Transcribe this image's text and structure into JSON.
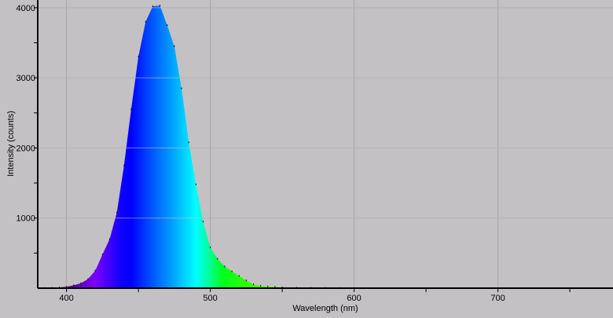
{
  "chart_data": {
    "type": "area",
    "title": "",
    "xlabel": "Wavelength (nm)",
    "ylabel": "Intensity (counts)",
    "xlim": [
      380,
      780
    ],
    "ylim": [
      0,
      4110
    ],
    "grid": true,
    "x_ticks": [
      "400",
      "500",
      "600",
      "700"
    ],
    "x_tick_values": [
      400,
      500,
      600,
      700
    ],
    "x_minor_ticks": [
      450,
      550,
      650,
      750
    ],
    "y_ticks": [
      "1000",
      "2000",
      "3000",
      "4000"
    ],
    "y_tick_values": [
      1000,
      2000,
      3000,
      4000
    ],
    "y_minor_ticks": [
      500,
      1500,
      2500,
      3500
    ],
    "fill": "spectral color gradient by wavelength",
    "x": [
      385,
      390,
      395,
      400,
      405,
      410,
      415,
      420,
      425,
      430,
      435,
      440,
      445,
      450,
      455,
      460,
      465,
      470,
      475,
      480,
      485,
      490,
      495,
      500,
      505,
      510,
      515,
      520,
      525,
      530,
      535,
      540,
      545,
      550,
      560,
      570,
      580,
      590,
      600
    ],
    "y": [
      2,
      5,
      10,
      20,
      40,
      70,
      130,
      250,
      480,
      700,
      1080,
      1750,
      2550,
      3300,
      3800,
      4020,
      4030,
      3750,
      3450,
      2850,
      2080,
      1480,
      950,
      580,
      420,
      310,
      240,
      175,
      110,
      55,
      35,
      25,
      18,
      12,
      6,
      4,
      3,
      2,
      0
    ]
  },
  "colors": {
    "background": "#c3c1c3",
    "grid": "#a4a4a4",
    "axis": "#000000"
  }
}
